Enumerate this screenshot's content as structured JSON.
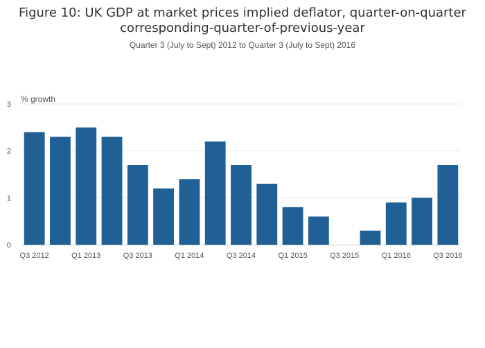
{
  "chart_data": {
    "type": "bar",
    "title_line1": "Figure 10: UK GDP at market prices implied deflator, quarter-on-quarter",
    "title_line2": "corresponding-quarter-of-previous-year",
    "subtitle": "Quarter 3 (July to Sept) 2012 to Quarter 3 (July to Sept) 2016",
    "ylabel": "% growth",
    "xlabel": "",
    "ylim": [
      0,
      3
    ],
    "yticks": [
      0,
      1,
      2,
      3
    ],
    "categories": [
      "Q3 2012",
      "Q4 2012",
      "Q1 2013",
      "Q2 2013",
      "Q3 2013",
      "Q4 2013",
      "Q1 2014",
      "Q2 2014",
      "Q3 2014",
      "Q4 2014",
      "Q1 2015",
      "Q2 2015",
      "Q3 2015",
      "Q4 2015",
      "Q1 2016",
      "Q2 2016",
      "Q3 2016"
    ],
    "xtick_labels": [
      "Q3 2012",
      "",
      "Q1 2013",
      "",
      "Q3 2013",
      "",
      "Q1 2014",
      "",
      "Q3 2014",
      "",
      "Q1 2015",
      "",
      "Q3 2015",
      "",
      "Q1 2016",
      "",
      "Q3 2016"
    ],
    "values": [
      2.4,
      2.3,
      2.5,
      2.3,
      1.7,
      1.2,
      1.4,
      2.2,
      1.7,
      1.3,
      0.8,
      0.6,
      0.0,
      0.3,
      0.9,
      1.0,
      1.7
    ],
    "bar_color": "#206095",
    "grid": true,
    "legend": "none"
  }
}
